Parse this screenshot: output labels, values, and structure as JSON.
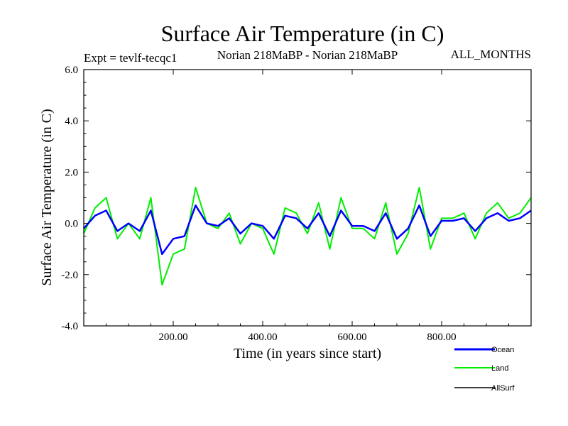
{
  "chart_data": {
    "type": "line",
    "title": "Surface Air Temperature (in C)",
    "subtitle_left": "Expt = tevlf-tecqc1",
    "subtitle_center": "Norian 218MaBP - Norian 218MaBP",
    "subtitle_right": "ALL_MONTHS",
    "xlabel": "Time (in years since start)",
    "ylabel": "Surface Air Temperature (in C)",
    "xlim": [
      0,
      1000
    ],
    "ylim": [
      -4.0,
      6.0
    ],
    "x_ticks": [
      200,
      400,
      600,
      800
    ],
    "x_tick_labels": [
      "200.00",
      "400.00",
      "600.00",
      "800.00"
    ],
    "y_ticks": [
      -4,
      -2,
      0,
      2,
      4,
      6
    ],
    "y_tick_labels": [
      "-4.0",
      "-2.0",
      "0.0",
      "2.0",
      "4.0",
      "6.0"
    ],
    "series": [
      {
        "name": "Ocean",
        "color": "#0000ff",
        "x_step": 25,
        "x_start": 0,
        "values": [
          -0.2,
          0.3,
          0.5,
          -0.3,
          0.0,
          -0.3,
          0.5,
          -1.2,
          -0.6,
          -0.5,
          0.7,
          0.0,
          -0.1,
          0.2,
          -0.4,
          0.0,
          -0.1,
          -0.6,
          0.3,
          0.2,
          -0.2,
          0.4,
          -0.5,
          0.5,
          -0.1,
          -0.1,
          -0.3,
          0.4,
          -0.6,
          -0.2,
          0.7,
          -0.5,
          0.1,
          0.1,
          0.2,
          -0.3,
          0.2,
          0.4,
          0.1,
          0.2,
          0.5
        ]
      },
      {
        "name": "Land",
        "color": "#00ee00",
        "x_step": 25,
        "x_start": 0,
        "values": [
          -0.4,
          0.6,
          1.0,
          -0.6,
          0.0,
          -0.6,
          1.0,
          -2.4,
          -1.2,
          -1.0,
          1.4,
          0.0,
          -0.2,
          0.4,
          -0.8,
          0.0,
          -0.2,
          -1.2,
          0.6,
          0.4,
          -0.4,
          0.8,
          -1.0,
          1.0,
          -0.2,
          -0.2,
          -0.6,
          0.8,
          -1.2,
          -0.4,
          1.4,
          -1.0,
          0.2,
          0.2,
          0.4,
          -0.6,
          0.4,
          0.8,
          0.2,
          0.4,
          1.0
        ]
      },
      {
        "name": "AllSurf",
        "color": "#000000",
        "x_step": 25,
        "x_start": 0,
        "values": []
      }
    ]
  }
}
